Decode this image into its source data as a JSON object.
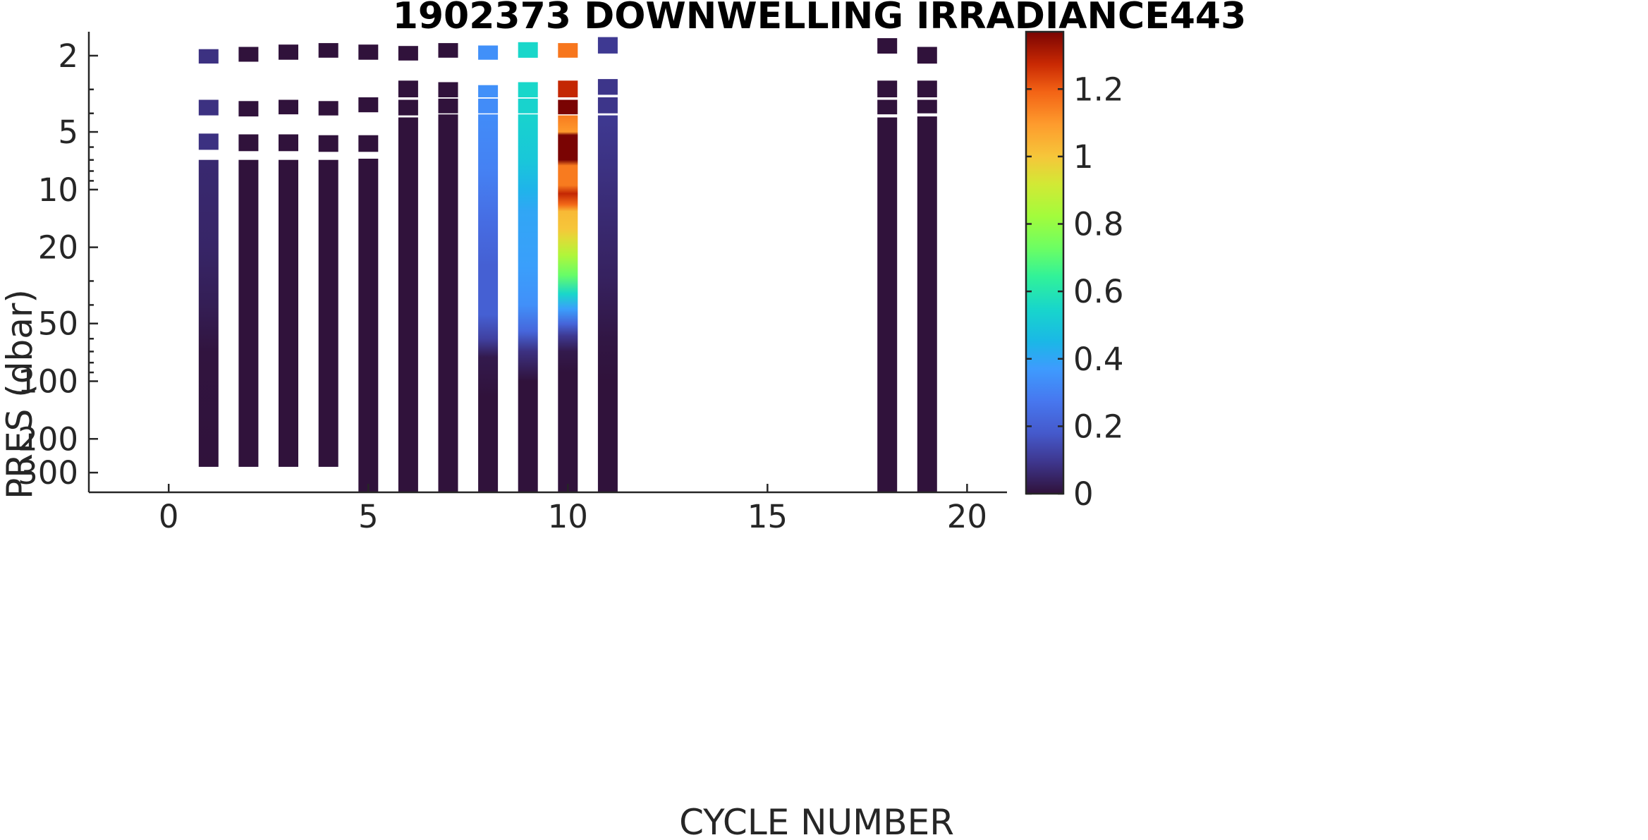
{
  "chart_data": {
    "type": "heatmap",
    "title": "1902373  DOWNWELLING IRRADIANCE443",
    "xlabel": "CYCLE NUMBER",
    "ylabel": "PRES (dbar)",
    "xlim": [
      -2,
      21
    ],
    "ylim": [
      1.5,
      380
    ],
    "y_scale": "log",
    "y_direction": "reversed",
    "x_ticks": [
      0,
      5,
      10,
      15,
      20
    ],
    "x_tick_labels": [
      "0",
      "5",
      "10",
      "15",
      "20"
    ],
    "y_ticks": [
      2,
      5,
      10,
      20,
      50,
      100,
      200,
      300
    ],
    "y_tick_labels": [
      "2",
      "5",
      "10",
      "20",
      "50",
      "100",
      "200",
      "300"
    ],
    "colorbar": {
      "range": [
        0,
        1.37
      ],
      "ticks": [
        0,
        0.2,
        0.4,
        0.6,
        0.8,
        1,
        1.2
      ],
      "tick_labels": [
        "0",
        "0.2",
        "0.4",
        "0.6",
        "0.8",
        "1",
        "1.2"
      ],
      "colormap": "turbo",
      "placement": "right"
    },
    "grid": false,
    "profiles": [
      {
        "cycle": 1,
        "segments": [
          {
            "p_top": 1.85,
            "p_bot": 2.2,
            "v": 0.08
          },
          {
            "p_top": 3.4,
            "p_bot": 4.1,
            "v": 0.08
          },
          {
            "p_top": 5.1,
            "p_bot": 6.2,
            "v": 0.08
          },
          {
            "p_top": 7.0,
            "p_bot": 280,
            "gradient": [
              [
                7.0,
                0.06
              ],
              [
                20,
                0.05
              ],
              [
                40,
                0.03
              ],
              [
                70,
                0.005
              ],
              [
                280,
                0
              ]
            ]
          }
        ]
      },
      {
        "cycle": 2,
        "segments": [
          {
            "p_top": 1.8,
            "p_bot": 2.15,
            "v": 0
          },
          {
            "p_top": 3.45,
            "p_bot": 4.15,
            "v": 0
          },
          {
            "p_top": 5.15,
            "p_bot": 6.3,
            "v": 0
          },
          {
            "p_top": 7.0,
            "p_bot": 280,
            "v": 0
          }
        ]
      },
      {
        "cycle": 3,
        "segments": [
          {
            "p_top": 1.75,
            "p_bot": 2.1,
            "v": 0
          },
          {
            "p_top": 3.4,
            "p_bot": 4.05,
            "v": 0
          },
          {
            "p_top": 5.15,
            "p_bot": 6.3,
            "v": 0
          },
          {
            "p_top": 7.0,
            "p_bot": 280,
            "v": 0
          }
        ]
      },
      {
        "cycle": 4,
        "segments": [
          {
            "p_top": 1.72,
            "p_bot": 2.05,
            "v": 0
          },
          {
            "p_top": 3.45,
            "p_bot": 4.1,
            "v": 0
          },
          {
            "p_top": 5.2,
            "p_bot": 6.35,
            "v": 0
          },
          {
            "p_top": 7.0,
            "p_bot": 280,
            "v": 0
          }
        ]
      },
      {
        "cycle": 5,
        "segments": [
          {
            "p_top": 1.75,
            "p_bot": 2.1,
            "v": 0
          },
          {
            "p_top": 3.3,
            "p_bot": 3.95,
            "v": 0
          },
          {
            "p_top": 5.2,
            "p_bot": 6.35,
            "v": 0
          },
          {
            "p_top": 6.9,
            "p_bot": 380,
            "v": 0
          }
        ]
      },
      {
        "cycle": 6,
        "segments": [
          {
            "p_top": 1.78,
            "p_bot": 2.12,
            "v": 0
          },
          {
            "p_top": 2.7,
            "p_bot": 3.3,
            "v": 0
          },
          {
            "p_top": 3.4,
            "p_bot": 4.1,
            "v": 0
          },
          {
            "p_top": 4.2,
            "p_bot": 380,
            "v": 0
          }
        ]
      },
      {
        "cycle": 7,
        "segments": [
          {
            "p_top": 1.72,
            "p_bot": 2.05,
            "v": 0
          },
          {
            "p_top": 2.75,
            "p_bot": 3.3,
            "v": 0
          },
          {
            "p_top": 3.35,
            "p_bot": 4.0,
            "v": 0
          },
          {
            "p_top": 4.05,
            "p_bot": 380,
            "v": 0
          }
        ]
      },
      {
        "cycle": 8,
        "segments": [
          {
            "p_top": 1.77,
            "p_bot": 2.1,
            "v": 0.34
          },
          {
            "p_top": 2.85,
            "p_bot": 3.3,
            "v": 0.34
          },
          {
            "p_top": 3.35,
            "p_bot": 4.0,
            "v": 0.33
          },
          {
            "p_top": 4.05,
            "p_bot": 380,
            "gradient": [
              [
                4.05,
                0.33
              ],
              [
                8,
                0.3
              ],
              [
                15,
                0.24
              ],
              [
                25,
                0.2
              ],
              [
                45,
                0.2
              ],
              [
                60,
                0.12
              ],
              [
                75,
                0.02
              ],
              [
                120,
                0
              ],
              [
                380,
                0
              ]
            ]
          }
        ]
      },
      {
        "cycle": 9,
        "segments": [
          {
            "p_top": 1.7,
            "p_bot": 2.05,
            "v": 0.55
          },
          {
            "p_top": 2.75,
            "p_bot": 3.3,
            "v": 0.55
          },
          {
            "p_top": 3.35,
            "p_bot": 4.0,
            "v": 0.54
          },
          {
            "p_top": 4.05,
            "p_bot": 380,
            "gradient": [
              [
                4.05,
                0.54
              ],
              [
                7,
                0.5
              ],
              [
                10,
                0.44
              ],
              [
                13,
                0.4
              ],
              [
                25,
                0.38
              ],
              [
                40,
                0.34
              ],
              [
                55,
                0.22
              ],
              [
                70,
                0.08
              ],
              [
                100,
                0
              ],
              [
                380,
                0
              ]
            ]
          }
        ]
      },
      {
        "cycle": 10,
        "segments": [
          {
            "p_top": 1.72,
            "p_bot": 2.05,
            "v": 1.16
          },
          {
            "p_top": 2.7,
            "p_bot": 3.3,
            "v": 1.28
          },
          {
            "p_top": 3.4,
            "p_bot": 4.05,
            "v": 1.37
          },
          {
            "p_top": 4.1,
            "p_bot": 380,
            "gradient": [
              [
                4.1,
                1.15
              ],
              [
                5.0,
                1.1
              ],
              [
                5.2,
                1.37
              ],
              [
                7.0,
                1.37
              ],
              [
                7.5,
                1.15
              ],
              [
                9.5,
                1.15
              ],
              [
                10.5,
                1.28
              ],
              [
                12,
                1.18
              ],
              [
                13,
                1.03
              ],
              [
                16,
                1.0
              ],
              [
                18,
                0.95
              ],
              [
                22,
                0.85
              ],
              [
                28,
                0.72
              ],
              [
                35,
                0.55
              ],
              [
                42,
                0.38
              ],
              [
                50,
                0.22
              ],
              [
                58,
                0.1
              ],
              [
                70,
                0.02
              ],
              [
                90,
                0
              ],
              [
                380,
                0
              ]
            ]
          }
        ]
      },
      {
        "cycle": 11,
        "segments": [
          {
            "p_top": 1.6,
            "p_bot": 1.95,
            "v": 0.1
          },
          {
            "p_top": 2.65,
            "p_bot": 3.2,
            "v": 0.09
          },
          {
            "p_top": 3.3,
            "p_bot": 4.0,
            "v": 0.09
          },
          {
            "p_top": 4.1,
            "p_bot": 380,
            "gradient": [
              [
                4.1,
                0.1
              ],
              [
                8,
                0.08
              ],
              [
                15,
                0.06
              ],
              [
                30,
                0.04
              ],
              [
                60,
                0.01
              ],
              [
                100,
                0
              ],
              [
                380,
                0
              ]
            ]
          }
        ]
      },
      {
        "cycle": 18,
        "segments": [
          {
            "p_top": 1.62,
            "p_bot": 1.95,
            "v": 0
          },
          {
            "p_top": 2.7,
            "p_bot": 3.3,
            "v": 0
          },
          {
            "p_top": 3.4,
            "p_bot": 4.05,
            "v": 0
          },
          {
            "p_top": 4.2,
            "p_bot": 380,
            "v": 0
          }
        ]
      },
      {
        "cycle": 19,
        "segments": [
          {
            "p_top": 1.8,
            "p_bot": 2.2,
            "v": 0
          },
          {
            "p_top": 2.7,
            "p_bot": 3.3,
            "v": 0
          },
          {
            "p_top": 3.4,
            "p_bot": 4.0,
            "v": 0
          },
          {
            "p_top": 4.15,
            "p_bot": 380,
            "v": 0
          }
        ]
      }
    ]
  }
}
